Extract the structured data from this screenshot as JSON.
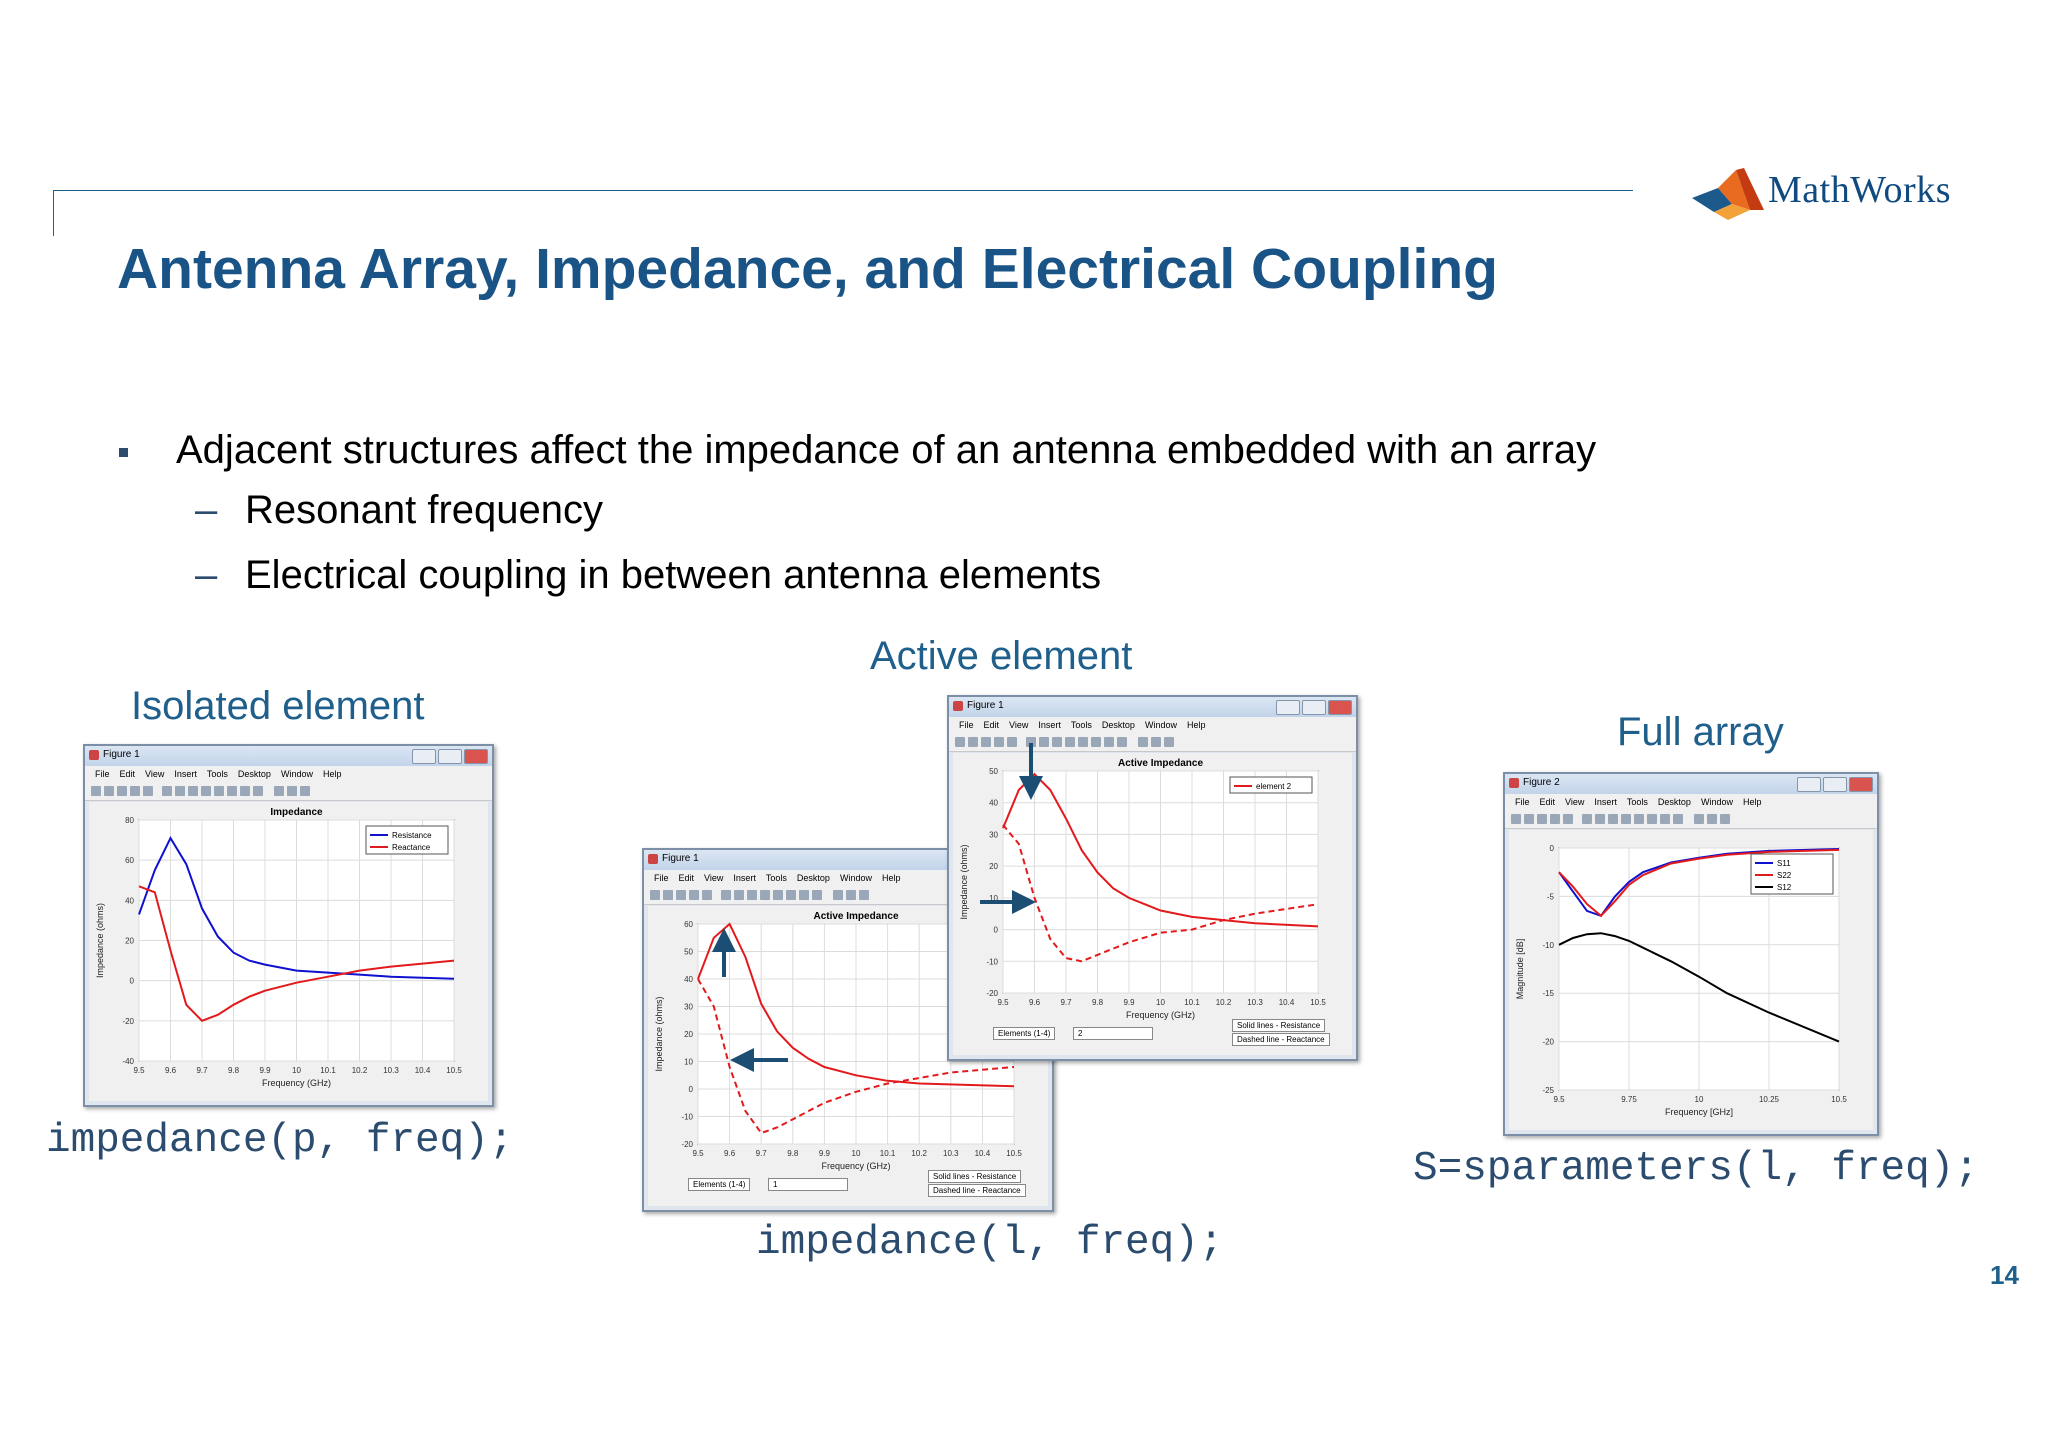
{
  "slide": {
    "title": "Antenna Array, Impedance, and Electrical Coupling",
    "logo_text": "MathWorks",
    "page_number": "14",
    "bullet": "Adjacent structures affect the impedance of an antenna embedded with an array",
    "sub_bullets": [
      "Resonant frequency",
      "Electrical coupling in between antenna elements"
    ],
    "dash": "–",
    "colors": {
      "title": "#1a5386",
      "caption": "#1f5f8b",
      "red": "#e31a1c",
      "blue": "#1010d0"
    }
  },
  "captions": {
    "isolated": "Isolated element",
    "active": "Active element",
    "full": "Full array"
  },
  "code": {
    "isolated": "impedance(p, freq);",
    "active": "impedance(l, freq);",
    "full": "S=sparameters(l, freq);"
  },
  "menus": [
    "File",
    "Edit",
    "View",
    "Insert",
    "Tools",
    "Desktop",
    "Window",
    "Help"
  ],
  "figures": {
    "fig1": {
      "window_title": "Figure 1"
    },
    "fig2": {
      "window_title": "Figure 1",
      "elements_label": "Elements (1-4)",
      "elements_value": "1",
      "legend_solid": "Solid lines - Resistance",
      "legend_dashed": "Dashed line - Reactance"
    },
    "fig3": {
      "window_title": "Figure 1",
      "elements_label": "Elements (1-4)",
      "elements_value": "2",
      "legend_solid": "Solid lines - Resistance",
      "legend_dashed": "Dashed line - Reactance"
    },
    "fig4": {
      "window_title": "Figure 2"
    }
  },
  "chart_data": [
    {
      "type": "line",
      "title": "Impedance",
      "xlabel": "Frequency (GHz)",
      "ylabel": "Impedance (ohms)",
      "xlim": [
        9.5,
        10.5
      ],
      "ylim": [
        -40,
        80
      ],
      "xticks": [
        9.5,
        9.6,
        9.7,
        9.8,
        9.9,
        10,
        10.1,
        10.2,
        10.3,
        10.4,
        10.5
      ],
      "yticks": [
        -40,
        -20,
        0,
        20,
        40,
        60,
        80
      ],
      "grid": true,
      "legend_position": "top-right",
      "series": [
        {
          "name": "Resistance",
          "color": "#1010d0",
          "dash": false,
          "x": [
            9.5,
            9.55,
            9.6,
            9.65,
            9.7,
            9.75,
            9.8,
            9.85,
            9.9,
            10,
            10.1,
            10.2,
            10.3,
            10.5
          ],
          "y": [
            33,
            55,
            71,
            58,
            36,
            22,
            14,
            10,
            8,
            5,
            4,
            3,
            2,
            1
          ]
        },
        {
          "name": "Reactance",
          "color": "#e31a1c",
          "dash": false,
          "x": [
            9.5,
            9.55,
            9.6,
            9.65,
            9.7,
            9.75,
            9.8,
            9.85,
            9.9,
            10,
            10.1,
            10.2,
            10.3,
            10.5
          ],
          "y": [
            47,
            44,
            15,
            -12,
            -20,
            -17,
            -12,
            -8,
            -5,
            -1,
            2,
            5,
            7,
            10
          ]
        }
      ]
    },
    {
      "type": "line",
      "title": "Active Impedance",
      "xlabel": "Frequency (GHz)",
      "ylabel": "Impedance (ohms)",
      "xlim": [
        9.5,
        10.5
      ],
      "ylim": [
        -20,
        60
      ],
      "xticks": [
        9.5,
        9.6,
        9.7,
        9.8,
        9.9,
        10,
        10.1,
        10.2,
        10.3,
        10.4,
        10.5
      ],
      "yticks": [
        -20,
        -10,
        0,
        10,
        20,
        30,
        40,
        50,
        60
      ],
      "grid": true,
      "series": [
        {
          "name": "",
          "color": "#e31a1c",
          "dash": false,
          "x": [
            9.5,
            9.55,
            9.6,
            9.65,
            9.7,
            9.75,
            9.8,
            9.85,
            9.9,
            10,
            10.1,
            10.2,
            10.5
          ],
          "y": [
            40,
            55,
            60,
            48,
            31,
            21,
            15,
            11,
            8,
            5,
            3,
            2,
            1
          ]
        },
        {
          "name": "",
          "color": "#e31a1c",
          "dash": true,
          "x": [
            9.5,
            9.55,
            9.6,
            9.65,
            9.7,
            9.75,
            9.8,
            9.85,
            9.9,
            10,
            10.1,
            10.2,
            10.3,
            10.5
          ],
          "y": [
            40,
            30,
            8,
            -8,
            -16,
            -14,
            -11,
            -8,
            -5,
            -1,
            2,
            4,
            6,
            8
          ]
        }
      ]
    },
    {
      "type": "line",
      "title": "Active Impedance",
      "xlabel": "Frequency (GHz)",
      "ylabel": "Impedance (ohms)",
      "xlim": [
        9.5,
        10.5
      ],
      "ylim": [
        -20,
        50
      ],
      "xticks": [
        9.5,
        9.6,
        9.7,
        9.8,
        9.9,
        10,
        10.1,
        10.2,
        10.3,
        10.4,
        10.5
      ],
      "yticks": [
        -20,
        -10,
        0,
        10,
        20,
        30,
        40,
        50
      ],
      "grid": true,
      "legend_position": "top-right",
      "series": [
        {
          "name": "element 2",
          "color": "#e31a1c",
          "dash": false,
          "x": [
            9.5,
            9.55,
            9.6,
            9.65,
            9.7,
            9.75,
            9.8,
            9.85,
            9.9,
            10,
            10.1,
            10.2,
            10.3,
            10.5
          ],
          "y": [
            32,
            44,
            49,
            44,
            35,
            25,
            18,
            13,
            10,
            6,
            4,
            3,
            2,
            1
          ]
        },
        {
          "name": "",
          "color": "#e31a1c",
          "dash": true,
          "x": [
            9.5,
            9.55,
            9.6,
            9.65,
            9.7,
            9.75,
            9.8,
            9.85,
            9.9,
            10,
            10.1,
            10.2,
            10.3,
            10.5
          ],
          "y": [
            33,
            27,
            10,
            -3,
            -9,
            -10,
            -8,
            -6,
            -4,
            -1,
            0,
            3,
            5,
            8
          ]
        }
      ]
    },
    {
      "type": "line",
      "title": "",
      "xlabel": "Frequency [GHz]",
      "ylabel": "Magnitude [dB]",
      "xlim": [
        9.5,
        10.5
      ],
      "ylim": [
        -25,
        0
      ],
      "xticks": [
        9.5,
        9.75,
        10,
        10.25,
        10.5
      ],
      "yticks": [
        -25,
        -20,
        -15,
        -10,
        -5,
        0
      ],
      "grid": true,
      "legend_position": "top-right",
      "series": [
        {
          "name": "S11",
          "color": "#1010d0",
          "dash": false,
          "x": [
            9.5,
            9.55,
            9.6,
            9.65,
            9.7,
            9.75,
            9.8,
            9.9,
            10,
            10.1,
            10.25,
            10.5
          ],
          "y": [
            -2.5,
            -4.5,
            -6.5,
            -7,
            -5,
            -3.5,
            -2.5,
            -1.5,
            -1,
            -0.6,
            -0.3,
            -0.1
          ]
        },
        {
          "name": "S22",
          "color": "#e31a1c",
          "dash": false,
          "x": [
            9.5,
            9.55,
            9.6,
            9.65,
            9.7,
            9.75,
            9.8,
            9.9,
            10,
            10.1,
            10.25,
            10.5
          ],
          "y": [
            -2.5,
            -4,
            -5.8,
            -7,
            -5.5,
            -3.8,
            -2.8,
            -1.6,
            -1.1,
            -0.7,
            -0.4,
            -0.2
          ]
        },
        {
          "name": "S12",
          "color": "#000000",
          "dash": false,
          "x": [
            9.5,
            9.55,
            9.6,
            9.65,
            9.7,
            9.75,
            9.8,
            9.9,
            10,
            10.1,
            10.25,
            10.5
          ],
          "y": [
            -10,
            -9.3,
            -8.9,
            -8.8,
            -9.1,
            -9.6,
            -10.3,
            -11.7,
            -13.3,
            -15,
            -17,
            -20
          ]
        }
      ]
    }
  ]
}
